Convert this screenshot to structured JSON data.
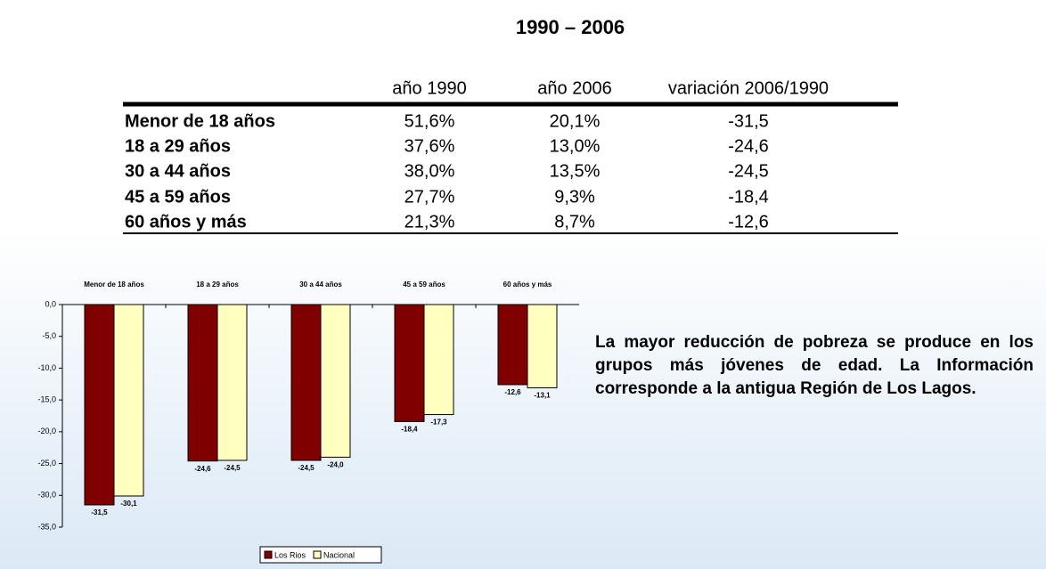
{
  "title": "1990 – 2006",
  "table": {
    "header": [
      "",
      "año 1990",
      "año 2006",
      "variación 2006/1990"
    ],
    "rows": [
      [
        "Menor de 18 años",
        "51,6%",
        "20,1%",
        "-31,5"
      ],
      [
        "18 a 29 años",
        "37,6%",
        "13,0%",
        "-24,6"
      ],
      [
        "30 a 44 años",
        "38,0%",
        "13,5%",
        "-24,5"
      ],
      [
        "45 a 59 años",
        "27,7%",
        "9,3%",
        "-18,4"
      ],
      [
        "60 años y más",
        "21,3%",
        "8,7%",
        "-12,6"
      ]
    ]
  },
  "chart_data": {
    "type": "bar",
    "categories": [
      "Menor de 18 años",
      "18 a 29 años",
      "30 a 44 años",
      "45 a 59 años",
      "60 años y más"
    ],
    "series": [
      {
        "name": "Los Rios",
        "color": "#800000",
        "values": [
          -31.5,
          -24.6,
          -24.5,
          -18.4,
          -12.6
        ],
        "value_labels": [
          "-31,5",
          "-24,6",
          "-24,5",
          "-18,4",
          "-12,6"
        ]
      },
      {
        "name": "Nacional",
        "color": "#ffffc0",
        "values": [
          -30.1,
          -24.5,
          -24.0,
          -17.3,
          -13.1
        ],
        "value_labels": [
          "-30,1",
          "-24,5",
          "-24,0",
          "-17,3",
          "-13,1"
        ]
      }
    ],
    "ylim": [
      -35,
      0
    ],
    "yticks": [
      {
        "value": 0,
        "label": "0,0"
      },
      {
        "value": -5,
        "label": "-5,0"
      },
      {
        "value": -10,
        "label": "-10,0"
      },
      {
        "value": -15,
        "label": "-15,0"
      },
      {
        "value": -20,
        "label": "-20,0"
      },
      {
        "value": -25,
        "label": "-25,0"
      },
      {
        "value": -30,
        "label": "-30,0"
      },
      {
        "value": -35,
        "label": "-35,0"
      }
    ],
    "legend": "bottom"
  },
  "note": "La mayor reducción de pobreza se produce en los grupos más jóvenes de edad. La Información corresponde a la antigua Región de Los Lagos."
}
